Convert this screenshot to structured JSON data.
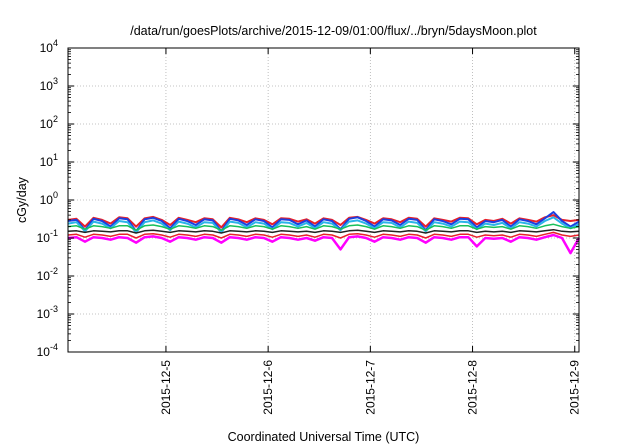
{
  "chart_data": {
    "type": "line",
    "title": "/data/run/goesPlots/archive/2015-12-09/01:00/flux/../bryn/5daysMoon.plot",
    "xlabel": "Coordinated Universal Time (UTC)",
    "ylabel": "cGy/day",
    "yscale": "log",
    "ylim": [
      0.0001,
      10000
    ],
    "xlim": [
      "2015-12-04 01:00",
      "2015-12-09 01:00"
    ],
    "grid": true,
    "x_ticks": [
      {
        "at": "2015-12-05 00:00",
        "label": "2015-12-5"
      },
      {
        "at": "2015-12-06 00:00",
        "label": "2015-12-6"
      },
      {
        "at": "2015-12-07 00:00",
        "label": "2015-12-7"
      },
      {
        "at": "2015-12-08 00:00",
        "label": "2015-12-8"
      },
      {
        "at": "2015-12-09 00:00",
        "label": "2015-12-9"
      }
    ],
    "y_ticks": [
      {
        "value": 0.0001,
        "base": "10",
        "exp": "-4"
      },
      {
        "value": 0.001,
        "base": "10",
        "exp": "-3"
      },
      {
        "value": 0.01,
        "base": "10",
        "exp": "-2"
      },
      {
        "value": 0.1,
        "base": "10",
        "exp": "-1"
      },
      {
        "value": 1,
        "base": "10",
        "exp": "0"
      },
      {
        "value": 10,
        "base": "10",
        "exp": "1"
      },
      {
        "value": 100,
        "base": "10",
        "exp": "2"
      },
      {
        "value": 1000,
        "base": "10",
        "exp": "3"
      },
      {
        "value": 10000,
        "base": "10",
        "exp": "4"
      }
    ],
    "x": [
      "2015-12-04 01:00",
      "2015-12-04 03:00",
      "2015-12-04 05:00",
      "2015-12-04 07:00",
      "2015-12-04 09:00",
      "2015-12-04 11:00",
      "2015-12-04 13:00",
      "2015-12-04 15:00",
      "2015-12-04 17:00",
      "2015-12-04 19:00",
      "2015-12-04 21:00",
      "2015-12-04 23:00",
      "2015-12-05 01:00",
      "2015-12-05 03:00",
      "2015-12-05 05:00",
      "2015-12-05 07:00",
      "2015-12-05 09:00",
      "2015-12-05 11:00",
      "2015-12-05 13:00",
      "2015-12-05 15:00",
      "2015-12-05 17:00",
      "2015-12-05 19:00",
      "2015-12-05 21:00",
      "2015-12-05 23:00",
      "2015-12-06 01:00",
      "2015-12-06 03:00",
      "2015-12-06 05:00",
      "2015-12-06 07:00",
      "2015-12-06 09:00",
      "2015-12-06 11:00",
      "2015-12-06 13:00",
      "2015-12-06 15:00",
      "2015-12-06 17:00",
      "2015-12-06 19:00",
      "2015-12-06 21:00",
      "2015-12-06 23:00",
      "2015-12-07 01:00",
      "2015-12-07 03:00",
      "2015-12-07 05:00",
      "2015-12-07 07:00",
      "2015-12-07 09:00",
      "2015-12-07 11:00",
      "2015-12-07 13:00",
      "2015-12-07 15:00",
      "2015-12-07 17:00",
      "2015-12-07 19:00",
      "2015-12-07 21:00",
      "2015-12-07 23:00",
      "2015-12-08 01:00",
      "2015-12-08 03:00",
      "2015-12-08 05:00",
      "2015-12-08 07:00",
      "2015-12-08 09:00",
      "2015-12-08 11:00",
      "2015-12-08 13:00",
      "2015-12-08 15:00",
      "2015-12-08 17:00",
      "2015-12-08 19:00",
      "2015-12-08 21:00",
      "2015-12-08 23:00",
      "2015-12-09 01:00"
    ],
    "series": [
      {
        "color": "#e8202a",
        "width": 2,
        "values": [
          0.3,
          0.32,
          0.2,
          0.34,
          0.3,
          0.24,
          0.35,
          0.33,
          0.2,
          0.33,
          0.36,
          0.3,
          0.22,
          0.34,
          0.3,
          0.26,
          0.33,
          0.31,
          0.19,
          0.34,
          0.31,
          0.26,
          0.33,
          0.3,
          0.23,
          0.33,
          0.32,
          0.27,
          0.31,
          0.24,
          0.33,
          0.3,
          0.22,
          0.34,
          0.36,
          0.3,
          0.24,
          0.33,
          0.31,
          0.26,
          0.34,
          0.32,
          0.2,
          0.33,
          0.3,
          0.27,
          0.34,
          0.33,
          0.23,
          0.3,
          0.28,
          0.32,
          0.24,
          0.33,
          0.3,
          0.27,
          0.35,
          0.4,
          0.3,
          0.28,
          0.3
        ]
      },
      {
        "color": "#1a3fe0",
        "width": 2,
        "values": [
          0.28,
          0.3,
          0.16,
          0.32,
          0.28,
          0.2,
          0.33,
          0.31,
          0.15,
          0.31,
          0.34,
          0.28,
          0.18,
          0.32,
          0.28,
          0.22,
          0.31,
          0.29,
          0.15,
          0.32,
          0.29,
          0.22,
          0.31,
          0.28,
          0.19,
          0.31,
          0.3,
          0.23,
          0.29,
          0.2,
          0.31,
          0.28,
          0.17,
          0.32,
          0.35,
          0.28,
          0.2,
          0.31,
          0.29,
          0.22,
          0.32,
          0.3,
          0.16,
          0.31,
          0.28,
          0.23,
          0.32,
          0.31,
          0.19,
          0.28,
          0.26,
          0.3,
          0.2,
          0.31,
          0.28,
          0.23,
          0.33,
          0.48,
          0.28,
          0.2,
          0.27
        ]
      },
      {
        "color": "#2ab4e8",
        "width": 2,
        "values": [
          0.24,
          0.26,
          0.15,
          0.27,
          0.24,
          0.18,
          0.28,
          0.26,
          0.14,
          0.26,
          0.29,
          0.24,
          0.16,
          0.27,
          0.24,
          0.19,
          0.26,
          0.25,
          0.14,
          0.27,
          0.25,
          0.19,
          0.26,
          0.24,
          0.17,
          0.26,
          0.25,
          0.2,
          0.25,
          0.18,
          0.26,
          0.24,
          0.16,
          0.27,
          0.29,
          0.24,
          0.18,
          0.26,
          0.25,
          0.19,
          0.27,
          0.25,
          0.15,
          0.26,
          0.24,
          0.2,
          0.27,
          0.26,
          0.17,
          0.24,
          0.22,
          0.25,
          0.18,
          0.26,
          0.24,
          0.2,
          0.28,
          0.35,
          0.24,
          0.18,
          0.23
        ]
      },
      {
        "color": "#17c05a",
        "width": 1.5,
        "values": [
          0.2,
          0.21,
          0.17,
          0.21,
          0.2,
          0.18,
          0.21,
          0.21,
          0.16,
          0.21,
          0.22,
          0.2,
          0.17,
          0.21,
          0.2,
          0.18,
          0.21,
          0.2,
          0.16,
          0.21,
          0.2,
          0.18,
          0.21,
          0.2,
          0.17,
          0.21,
          0.2,
          0.18,
          0.2,
          0.17,
          0.21,
          0.2,
          0.17,
          0.21,
          0.22,
          0.2,
          0.17,
          0.21,
          0.2,
          0.18,
          0.21,
          0.2,
          0.16,
          0.21,
          0.2,
          0.18,
          0.21,
          0.21,
          0.17,
          0.2,
          0.19,
          0.2,
          0.17,
          0.21,
          0.2,
          0.18,
          0.21,
          0.23,
          0.2,
          0.18,
          0.2
        ]
      },
      {
        "color": "#222222",
        "width": 1.5,
        "values": [
          0.15,
          0.155,
          0.14,
          0.155,
          0.15,
          0.145,
          0.155,
          0.155,
          0.135,
          0.155,
          0.16,
          0.15,
          0.14,
          0.155,
          0.15,
          0.145,
          0.155,
          0.15,
          0.135,
          0.155,
          0.15,
          0.145,
          0.155,
          0.15,
          0.14,
          0.155,
          0.15,
          0.145,
          0.15,
          0.14,
          0.155,
          0.15,
          0.14,
          0.155,
          0.16,
          0.15,
          0.14,
          0.155,
          0.15,
          0.145,
          0.155,
          0.15,
          0.135,
          0.155,
          0.15,
          0.145,
          0.155,
          0.155,
          0.14,
          0.15,
          0.145,
          0.15,
          0.14,
          0.155,
          0.15,
          0.145,
          0.155,
          0.165,
          0.15,
          0.145,
          0.15
        ]
      },
      {
        "color": "#e8202a",
        "width": 1.5,
        "values": [
          0.12,
          0.125,
          0.105,
          0.125,
          0.12,
          0.11,
          0.125,
          0.125,
          0.1,
          0.125,
          0.13,
          0.12,
          0.105,
          0.125,
          0.12,
          0.11,
          0.125,
          0.12,
          0.1,
          0.125,
          0.12,
          0.11,
          0.125,
          0.12,
          0.105,
          0.125,
          0.12,
          0.11,
          0.12,
          0.105,
          0.125,
          0.12,
          0.1,
          0.125,
          0.13,
          0.12,
          0.105,
          0.125,
          0.12,
          0.11,
          0.125,
          0.12,
          0.1,
          0.125,
          0.12,
          0.11,
          0.125,
          0.125,
          0.105,
          0.12,
          0.115,
          0.12,
          0.105,
          0.125,
          0.12,
          0.11,
          0.125,
          0.14,
          0.12,
          0.11,
          0.12
        ]
      },
      {
        "color": "#ff00ff",
        "width": 2.5,
        "values": [
          0.1,
          0.105,
          0.08,
          0.105,
          0.1,
          0.09,
          0.105,
          0.1,
          0.075,
          0.105,
          0.11,
          0.1,
          0.08,
          0.105,
          0.1,
          0.09,
          0.105,
          0.1,
          0.075,
          0.105,
          0.1,
          0.09,
          0.105,
          0.1,
          0.08,
          0.105,
          0.1,
          0.09,
          0.1,
          0.085,
          0.105,
          0.1,
          0.05,
          0.105,
          0.11,
          0.1,
          0.08,
          0.105,
          0.1,
          0.09,
          0.105,
          0.1,
          0.075,
          0.105,
          0.1,
          0.09,
          0.105,
          0.105,
          0.06,
          0.1,
          0.095,
          0.1,
          0.08,
          0.105,
          0.1,
          0.09,
          0.105,
          0.12,
          0.1,
          0.04,
          0.1
        ]
      }
    ]
  }
}
